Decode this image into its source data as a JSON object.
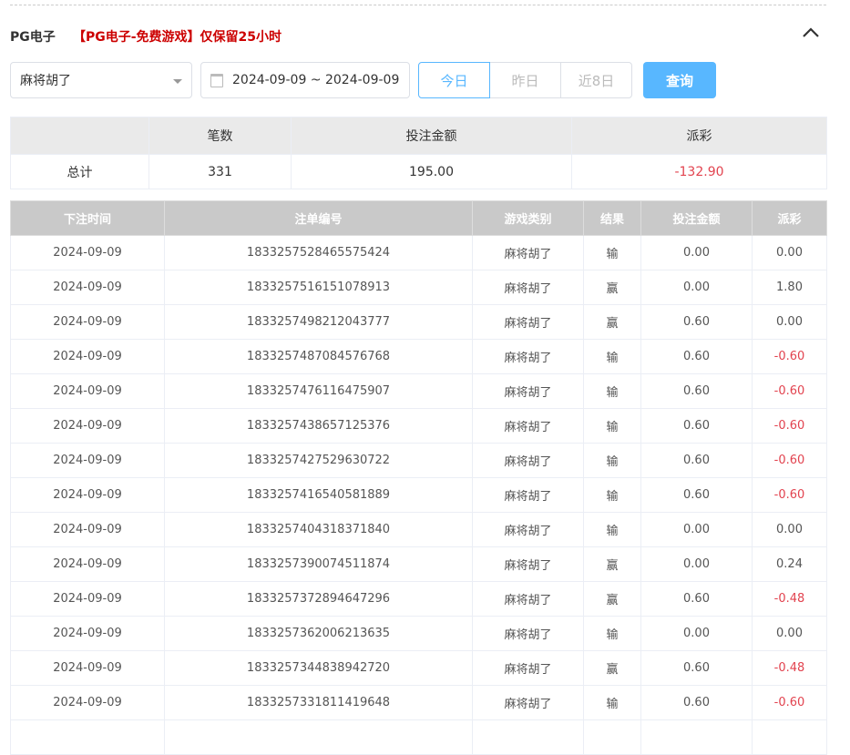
{
  "header": {
    "title": "PG电子",
    "notice": "【PG电子-免费游戏】仅保留25小时"
  },
  "filters": {
    "game": "麻将胡了",
    "date_range": "2024-09-09 ~ 2024-09-09",
    "tabs": [
      "今日",
      "昨日",
      "近8日"
    ],
    "active_tab": 0,
    "query_label": "查询"
  },
  "summary": {
    "headers": [
      "",
      "笔数",
      "投注金额",
      "派彩"
    ],
    "row": [
      "总计",
      "331",
      "195.00",
      "-132.90"
    ]
  },
  "table": {
    "headers": [
      "下注时间",
      "注单编号",
      "游戏类别",
      "结果",
      "投注金额",
      "派彩"
    ],
    "rows": [
      [
        "2024-09-09",
        "1833257528465575424",
        "麻将胡了",
        "输",
        "0.00",
        "0.00"
      ],
      [
        "2024-09-09",
        "1833257516151078913",
        "麻将胡了",
        "赢",
        "0.00",
        "1.80"
      ],
      [
        "2024-09-09",
        "1833257498212043777",
        "麻将胡了",
        "赢",
        "0.60",
        "0.00"
      ],
      [
        "2024-09-09",
        "1833257487084576768",
        "麻将胡了",
        "输",
        "0.60",
        "-0.60"
      ],
      [
        "2024-09-09",
        "1833257476116475907",
        "麻将胡了",
        "输",
        "0.60",
        "-0.60"
      ],
      [
        "2024-09-09",
        "1833257438657125376",
        "麻将胡了",
        "输",
        "0.60",
        "-0.60"
      ],
      [
        "2024-09-09",
        "1833257427529630722",
        "麻将胡了",
        "输",
        "0.60",
        "-0.60"
      ],
      [
        "2024-09-09",
        "1833257416540581889",
        "麻将胡了",
        "输",
        "0.60",
        "-0.60"
      ],
      [
        "2024-09-09",
        "1833257404318371840",
        "麻将胡了",
        "输",
        "0.00",
        "0.00"
      ],
      [
        "2024-09-09",
        "1833257390074511874",
        "麻将胡了",
        "赢",
        "0.00",
        "0.24"
      ],
      [
        "2024-09-09",
        "1833257372894647296",
        "麻将胡了",
        "赢",
        "0.60",
        "-0.48"
      ],
      [
        "2024-09-09",
        "1833257362006213635",
        "麻将胡了",
        "输",
        "0.00",
        "0.00"
      ],
      [
        "2024-09-09",
        "1833257344838942720",
        "麻将胡了",
        "赢",
        "0.60",
        "-0.48"
      ],
      [
        "2024-09-09",
        "1833257331811419648",
        "麻将胡了",
        "输",
        "0.60",
        "-0.60"
      ],
      [
        "",
        "",
        "",
        "",
        "",
        ""
      ]
    ]
  },
  "colors": {
    "accent": "#58b7ff",
    "negative": "#e2434f",
    "notice": "#cc0000"
  }
}
